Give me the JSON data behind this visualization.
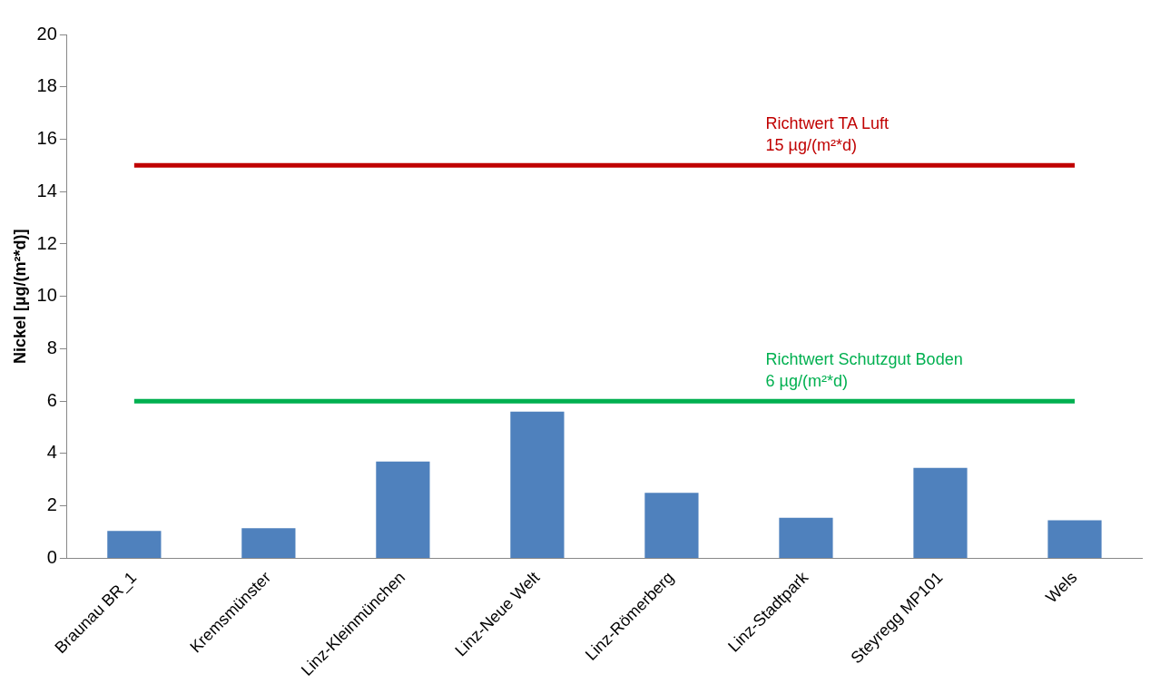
{
  "chart_data": {
    "type": "bar",
    "ylabel": "Nickel [µg/(m²*d)]",
    "categories": [
      "Braunau BR_1",
      "Kremsmünster",
      "Linz-Kleinmünchen",
      "Linz-Neue Welt",
      "Linz-Römerberg",
      "Linz-Stadtpark",
      "Steyregg MP101",
      "Wels"
    ],
    "values": [
      1.05,
      1.15,
      3.7,
      5.6,
      2.5,
      1.55,
      3.45,
      1.45
    ],
    "color": "#4f81bd",
    "ylim": [
      0,
      20
    ],
    "yticks": [
      0,
      2,
      4,
      6,
      8,
      10,
      12,
      14,
      16,
      18,
      20
    ],
    "grid": false,
    "legend": false,
    "ref_lines": [
      {
        "axis": "y",
        "value": 15,
        "label": "Richtwert TA Luft\n15 µg/(m²*d)",
        "color": "#c00000"
      },
      {
        "axis": "y",
        "value": 6,
        "label": "Richtwert Schutzgut Boden\n6 µg/(m²*d)",
        "color": "#00b050"
      }
    ]
  }
}
